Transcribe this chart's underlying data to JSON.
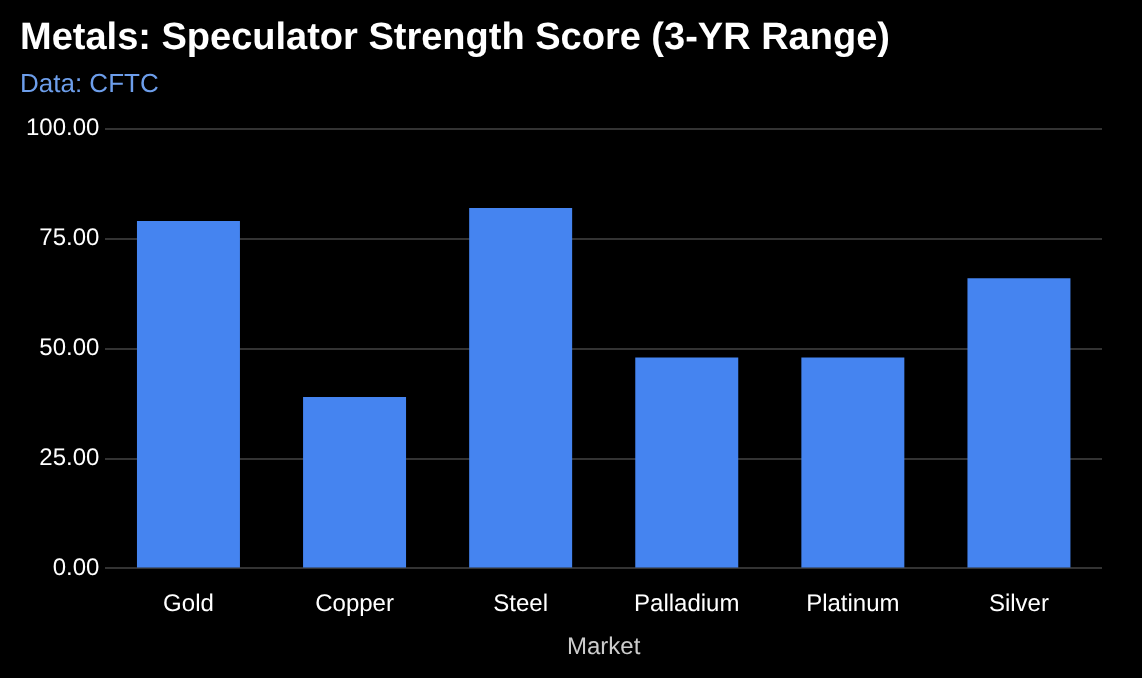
{
  "chart_data": {
    "type": "bar",
    "title": "Metals: Speculator Strength Score (3-YR Range)",
    "subtitle": "Data: CFTC",
    "xlabel": "Market",
    "categories": [
      "Gold",
      "Copper",
      "Steel",
      "Palladium",
      "Platinum",
      "Silver"
    ],
    "values": [
      79,
      39,
      82,
      48,
      48,
      66
    ],
    "color": "#4584f0",
    "ylim": [
      0,
      100
    ],
    "yticks": [
      {
        "value": 0,
        "label": "0.00"
      },
      {
        "value": 25,
        "label": "25.00"
      },
      {
        "value": 50,
        "label": "50.00"
      },
      {
        "value": 75,
        "label": "75.00"
      },
      {
        "value": 100,
        "label": "100.00"
      }
    ],
    "grid": "y"
  }
}
